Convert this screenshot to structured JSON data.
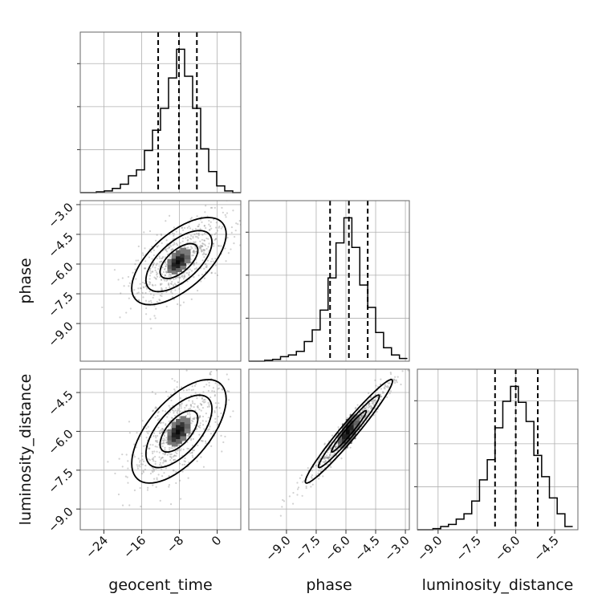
{
  "chart_data": {
    "type": "corner",
    "parameters": [
      "geocent_time",
      "phase",
      "luminosity_distance"
    ],
    "axis_labels": {
      "x": [
        "geocent_time",
        "phase",
        "luminosity_distance"
      ],
      "y": [
        "",
        "phase",
        "luminosity_distance"
      ]
    },
    "ranges": {
      "geocent_time": [
        -29,
        5
      ],
      "phase": [
        -10.9,
        -2.8
      ],
      "luminosity_distance": [
        -9.8,
        -3.6
      ]
    },
    "ticks": {
      "geocent_time": [
        -24,
        -16,
        -8,
        0
      ],
      "phase": [
        -9.0,
        -7.5,
        -6.0,
        -4.5,
        -3.0
      ],
      "luminosity_distance": [
        -9.0,
        -7.5,
        -6.0,
        -4.5
      ]
    },
    "tick_labels": {
      "geocent_time": [
        "−24",
        "−16",
        "−8",
        "0"
      ],
      "phase": [
        "−9.0",
        "−7.5",
        "−6.0",
        "−4.5",
        "−3.0"
      ],
      "luminosity_distance": [
        "−9.0",
        "−7.5",
        "−6.0",
        "−4.5"
      ]
    },
    "quantiles": {
      "geocent_time": [
        -12.5,
        -8.1,
        -4.3
      ],
      "phase": [
        -6.8,
        -5.85,
        -4.9
      ],
      "luminosity_distance": [
        -6.8,
        -6.0,
        -5.15
      ]
    },
    "histograms": {
      "geocent_time": {
        "edges": [
          -29.0,
          -27.3,
          -25.6,
          -23.9,
          -22.2,
          -20.5,
          -18.8,
          -17.1,
          -15.4,
          -13.7,
          -12.0,
          -10.3,
          -8.6,
          -6.9,
          -5.2,
          -3.5,
          -1.8,
          -0.1,
          1.6,
          3.3,
          5.0
        ],
        "counts": [
          0,
          0,
          1,
          2,
          5,
          10,
          20,
          27,
          50,
          74,
          100,
          136,
          170,
          138,
          100,
          52,
          25,
          8,
          2,
          0
        ]
      },
      "phase": {
        "edges": [
          -10.9,
          -10.5,
          -10.1,
          -9.7,
          -9.3,
          -8.9,
          -8.5,
          -8.1,
          -7.7,
          -7.3,
          -6.9,
          -6.5,
          -6.1,
          -5.7,
          -5.3,
          -4.9,
          -4.5,
          -4.1,
          -3.7,
          -3.3,
          -2.9
        ],
        "counts": [
          0,
          0,
          1,
          2,
          5,
          7,
          11,
          22,
          35,
          57,
          93,
          132,
          160,
          127,
          85,
          60,
          32,
          15,
          7,
          3
        ]
      },
      "luminosity_distance": {
        "edges": [
          -9.8,
          -9.5,
          -9.2,
          -8.9,
          -8.6,
          -8.3,
          -8.0,
          -7.7,
          -7.4,
          -7.1,
          -6.8,
          -6.5,
          -6.2,
          -5.9,
          -5.6,
          -5.3,
          -5.0,
          -4.7,
          -4.4,
          -4.1,
          -3.8
        ],
        "counts": [
          0,
          0,
          1,
          3,
          5,
          10,
          15,
          27,
          47,
          66,
          96,
          121,
          135,
          120,
          102,
          70,
          50,
          30,
          15,
          3
        ]
      }
    },
    "pairs": [
      {
        "x": "geocent_time",
        "y": "phase",
        "mean": [
          -8.1,
          -5.85
        ],
        "sd": [
          5.0,
          1.1
        ],
        "corr": 0.62
      },
      {
        "x": "geocent_time",
        "y": "luminosity_distance",
        "mean": [
          -8.1,
          -6.0
        ],
        "sd": [
          5.0,
          1.0
        ],
        "corr": 0.62
      },
      {
        "x": "phase",
        "y": "luminosity_distance",
        "mean": [
          -5.85,
          -6.0
        ],
        "sd": [
          1.1,
          1.0
        ],
        "corr": 0.97
      }
    ],
    "grid": true,
    "colors": {
      "line": "#000000",
      "points": "#7a7a7a",
      "grid": "#b0b0b0",
      "frame": "#666666"
    }
  }
}
